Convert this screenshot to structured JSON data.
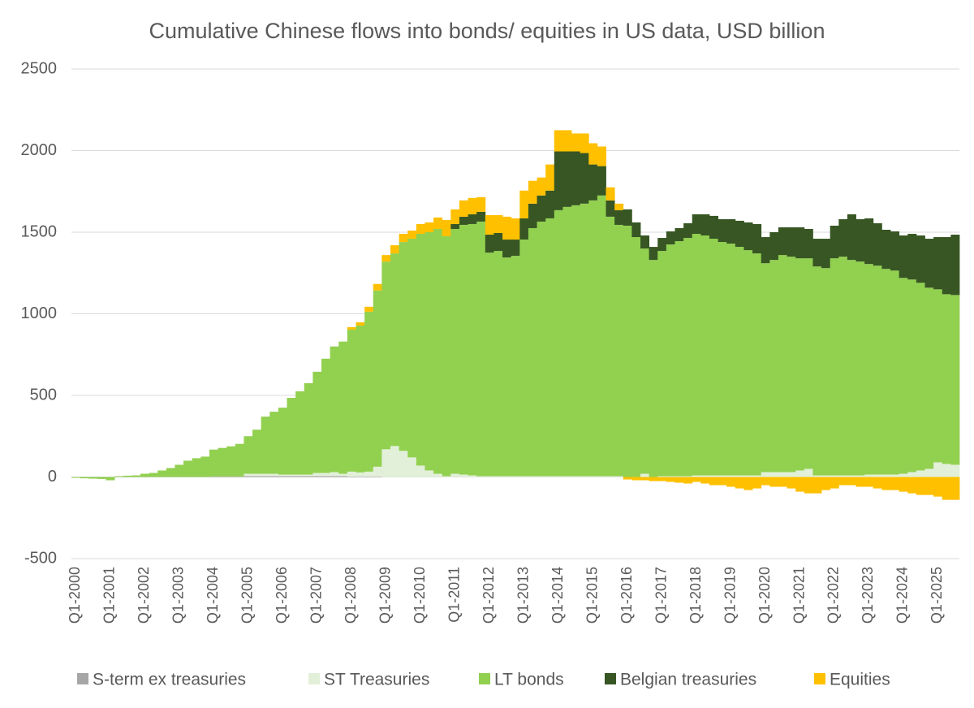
{
  "chart_data": {
    "type": "stacked_bar",
    "title": "Cumulative Chinese flows into bonds/ equities in US data, USD billion",
    "categories": [
      "Q1-2000",
      null,
      null,
      null,
      "Q1-2001",
      null,
      null,
      null,
      "Q1-2002",
      null,
      null,
      null,
      "Q1-2003",
      null,
      null,
      null,
      "Q1-2004",
      null,
      null,
      null,
      "Q1-2005",
      null,
      null,
      null,
      "Q1-2006",
      null,
      null,
      null,
      "Q1-2007",
      null,
      null,
      null,
      "Q1-2008",
      null,
      null,
      null,
      "Q1-2009",
      null,
      null,
      null,
      "Q1-2010",
      null,
      null,
      null,
      "Q1-2011",
      null,
      null,
      null,
      "Q1-2012",
      null,
      null,
      null,
      "Q1-2013",
      null,
      null,
      null,
      "Q1-2014",
      null,
      null,
      null,
      "Q1-2015",
      null,
      null,
      null,
      "Q1-2016",
      null,
      null,
      null,
      "Q1-2017",
      null,
      null,
      null,
      "Q1-2018",
      null,
      null,
      null,
      "Q1-2019",
      null,
      null,
      null,
      "Q1-2020",
      null,
      null,
      null,
      "Q1-2021",
      null,
      null,
      null,
      "Q1-2022",
      null,
      null,
      null,
      "Q1-2023",
      null,
      null,
      null,
      "Q1-2024",
      null,
      null,
      null,
      "Q1-2025",
      null,
      null
    ],
    "series": [
      {
        "name": "S-term ex treasuries",
        "color": "#a6a6a6",
        "values": [
          0,
          0,
          0,
          0,
          0,
          0,
          0,
          0,
          0,
          0,
          0,
          0,
          0,
          0,
          0,
          0,
          3,
          3,
          3,
          3,
          5,
          5,
          5,
          5,
          5,
          5,
          5,
          5,
          5,
          5,
          5,
          5,
          3,
          3,
          3,
          3,
          0,
          0,
          0,
          0,
          0,
          0,
          0,
          0,
          0,
          0,
          0,
          0,
          0,
          0,
          0,
          0,
          0,
          0,
          0,
          0,
          0,
          0,
          0,
          0,
          0,
          0,
          0,
          0,
          0,
          0,
          0,
          0,
          0,
          0,
          0,
          0,
          0,
          0,
          0,
          0,
          0,
          0,
          0,
          0,
          0,
          0,
          0,
          0,
          0,
          0,
          0,
          0,
          0,
          0,
          0,
          0,
          0,
          0,
          0,
          0,
          0,
          0,
          0,
          0,
          0,
          0,
          0
        ]
      },
      {
        "name": "ST Treasuries",
        "color": "#e2f0d9",
        "values": [
          0,
          0,
          0,
          0,
          0,
          0,
          0,
          0,
          0,
          0,
          0,
          0,
          0,
          0,
          0,
          0,
          0,
          0,
          0,
          0,
          15,
          15,
          15,
          15,
          10,
          10,
          10,
          10,
          20,
          20,
          25,
          15,
          30,
          25,
          30,
          60,
          170,
          190,
          160,
          120,
          70,
          40,
          20,
          5,
          20,
          15,
          10,
          5,
          5,
          5,
          5,
          5,
          5,
          5,
          5,
          5,
          5,
          5,
          5,
          5,
          5,
          5,
          5,
          5,
          0,
          0,
          20,
          0,
          5,
          5,
          5,
          5,
          10,
          10,
          10,
          10,
          10,
          10,
          10,
          10,
          30,
          30,
          30,
          30,
          40,
          50,
          10,
          10,
          10,
          10,
          10,
          10,
          15,
          15,
          15,
          15,
          20,
          30,
          40,
          50,
          90,
          80,
          75
        ]
      },
      {
        "name": "LT bonds",
        "color": "#92d050",
        "values": [
          -5,
          -8,
          -10,
          -12,
          -20,
          5,
          8,
          10,
          20,
          25,
          40,
          55,
          75,
          100,
          115,
          125,
          165,
          175,
          185,
          200,
          230,
          270,
          350,
          380,
          410,
          470,
          510,
          560,
          620,
          700,
          770,
          810,
          870,
          900,
          980,
          1080,
          1150,
          1180,
          1280,
          1340,
          1420,
          1460,
          1500,
          1470,
          1500,
          1530,
          1540,
          1560,
          1370,
          1380,
          1340,
          1350,
          1450,
          1520,
          1560,
          1580,
          1630,
          1650,
          1660,
          1670,
          1690,
          1720,
          1590,
          1540,
          1540,
          1470,
          1380,
          1330,
          1380,
          1420,
          1440,
          1460,
          1480,
          1470,
          1450,
          1430,
          1420,
          1400,
          1380,
          1360,
          1280,
          1300,
          1330,
          1320,
          1300,
          1290,
          1280,
          1270,
          1330,
          1340,
          1320,
          1310,
          1290,
          1280,
          1260,
          1250,
          1200,
          1180,
          1150,
          1110,
          1060,
          1040,
          1040
        ]
      },
      {
        "name": "Belgian treasuries",
        "color": "#375623",
        "values": [
          0,
          0,
          0,
          0,
          0,
          0,
          0,
          0,
          0,
          0,
          0,
          0,
          0,
          0,
          0,
          0,
          0,
          0,
          0,
          0,
          0,
          0,
          0,
          0,
          0,
          0,
          0,
          0,
          0,
          0,
          0,
          0,
          0,
          0,
          0,
          0,
          0,
          0,
          0,
          0,
          0,
          0,
          0,
          0,
          30,
          50,
          60,
          60,
          110,
          110,
          110,
          100,
          130,
          150,
          160,
          170,
          360,
          340,
          330,
          310,
          220,
          180,
          100,
          90,
          100,
          90,
          80,
          80,
          80,
          80,
          80,
          90,
          120,
          130,
          140,
          140,
          150,
          160,
          170,
          180,
          160,
          170,
          170,
          180,
          190,
          180,
          170,
          180,
          200,
          230,
          280,
          260,
          280,
          260,
          240,
          240,
          260,
          280,
          290,
          300,
          320,
          350,
          370
        ]
      },
      {
        "name": "Equities",
        "color": "#ffc000",
        "values": [
          0,
          0,
          0,
          0,
          0,
          0,
          0,
          0,
          0,
          0,
          0,
          0,
          0,
          0,
          0,
          0,
          0,
          0,
          0,
          0,
          0,
          0,
          0,
          0,
          0,
          0,
          0,
          0,
          0,
          0,
          0,
          0,
          15,
          20,
          30,
          40,
          40,
          50,
          50,
          50,
          60,
          60,
          70,
          100,
          90,
          100,
          100,
          90,
          120,
          110,
          140,
          130,
          170,
          140,
          110,
          160,
          130,
          130,
          110,
          120,
          130,
          120,
          80,
          40,
          -15,
          -20,
          -20,
          -25,
          -25,
          -30,
          -35,
          -40,
          -30,
          -40,
          -50,
          -50,
          -60,
          -70,
          -80,
          -70,
          -50,
          -60,
          -60,
          -70,
          -90,
          -100,
          -100,
          -80,
          -70,
          -50,
          -50,
          -60,
          -60,
          -70,
          -80,
          -80,
          -90,
          -100,
          -110,
          -110,
          -120,
          -140,
          -140
        ]
      }
    ],
    "ylim": [
      -500,
      2500
    ],
    "yticks": [
      -500,
      0,
      500,
      1000,
      1500,
      2000,
      2500
    ],
    "grid": true,
    "legend": "bottom"
  }
}
